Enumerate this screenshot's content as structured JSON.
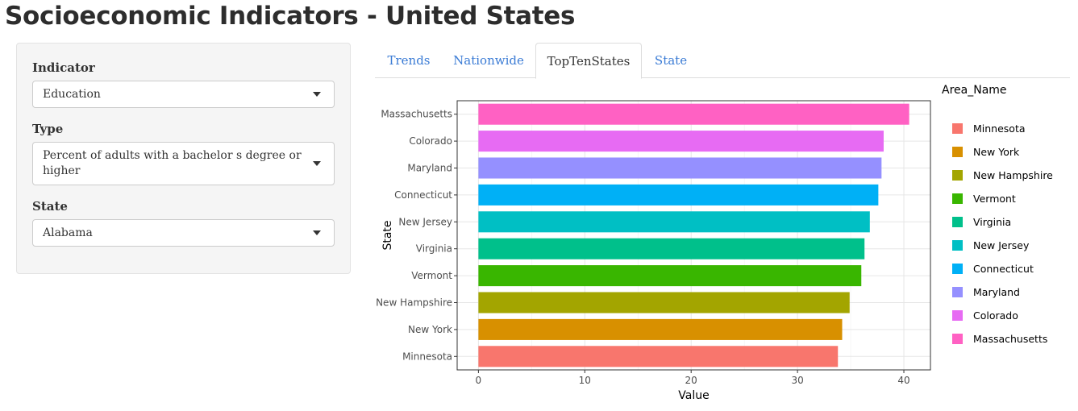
{
  "title": "Socioeconomic Indicators - United States",
  "sidebar": {
    "indicator_label": "Indicator",
    "indicator_value": "Education",
    "type_label": "Type",
    "type_value": "Percent of adults with a bachelor s degree or higher",
    "state_label": "State",
    "state_value": "Alabama"
  },
  "tabs": [
    {
      "label": "Trends",
      "active": false
    },
    {
      "label": "Nationwide",
      "active": false
    },
    {
      "label": "TopTenStates",
      "active": true
    },
    {
      "label": "State",
      "active": false
    }
  ],
  "chart_data": {
    "type": "bar",
    "orientation": "horizontal",
    "categories": [
      "Massachusetts",
      "Colorado",
      "Maryland",
      "Connecticut",
      "New Jersey",
      "Virginia",
      "Vermont",
      "New Hampshire",
      "New York",
      "Minnesota"
    ],
    "values": [
      40.5,
      38.1,
      37.9,
      37.6,
      36.8,
      36.3,
      36.0,
      34.9,
      34.2,
      33.8
    ],
    "colors": [
      "#FF61C3",
      "#E76BF3",
      "#9590FF",
      "#00B0F6",
      "#00BFC4",
      "#00C08B",
      "#39B600",
      "#A3A500",
      "#D89000",
      "#F8766D"
    ],
    "xlabel": "Value",
    "ylabel": "State",
    "xlim": [
      -2,
      42.5
    ],
    "xticks": [
      0,
      10,
      20,
      30,
      40
    ],
    "grid": true,
    "legend": {
      "title": "Area_Name",
      "position": "right",
      "items": [
        {
          "label": "Minnesota",
          "color": "#F8766D"
        },
        {
          "label": "New York",
          "color": "#D89000"
        },
        {
          "label": "New Hampshire",
          "color": "#A3A500"
        },
        {
          "label": "Vermont",
          "color": "#39B600"
        },
        {
          "label": "Virginia",
          "color": "#00C08B"
        },
        {
          "label": "New Jersey",
          "color": "#00BFC4"
        },
        {
          "label": "Connecticut",
          "color": "#00B0F6"
        },
        {
          "label": "Maryland",
          "color": "#9590FF"
        },
        {
          "label": "Colorado",
          "color": "#E76BF3"
        },
        {
          "label": "Massachusetts",
          "color": "#FF61C3"
        }
      ]
    }
  }
}
